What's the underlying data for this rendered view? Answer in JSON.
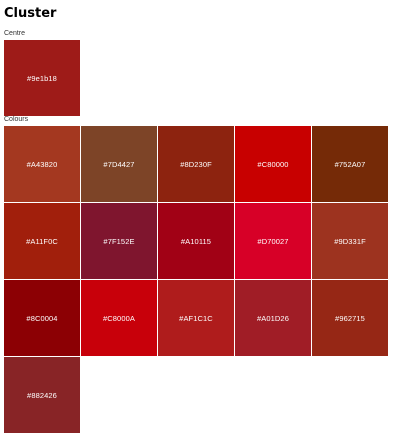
{
  "title": "Cluster",
  "centre": {
    "label": "Centre",
    "swatch": {
      "code": "#9e1b18",
      "color": "#9e1b18"
    }
  },
  "colours": {
    "label": "Colours",
    "swatches": [
      {
        "code": "#A43820",
        "color": "#A43820"
      },
      {
        "code": "#7D4427",
        "color": "#7D4427"
      },
      {
        "code": "#8D230F",
        "color": "#8D230F"
      },
      {
        "code": "#C80000",
        "color": "#C80000"
      },
      {
        "code": "#752A07",
        "color": "#752A07"
      },
      {
        "code": "#A11F0C",
        "color": "#A11F0C"
      },
      {
        "code": "#7F152E",
        "color": "#7F152E"
      },
      {
        "code": "#A10115",
        "color": "#A10115"
      },
      {
        "code": "#D70027",
        "color": "#D70027"
      },
      {
        "code": "#9D331F",
        "color": "#9D331F"
      },
      {
        "code": "#8C0004",
        "color": "#8C0004"
      },
      {
        "code": "#C8000A",
        "color": "#C8000A"
      },
      {
        "code": "#AF1C1C",
        "color": "#AF1C1C"
      },
      {
        "code": "#A01D26",
        "color": "#A01D26"
      },
      {
        "code": "#962715",
        "color": "#962715"
      },
      {
        "code": "#882426",
        "color": "#882426"
      }
    ]
  }
}
